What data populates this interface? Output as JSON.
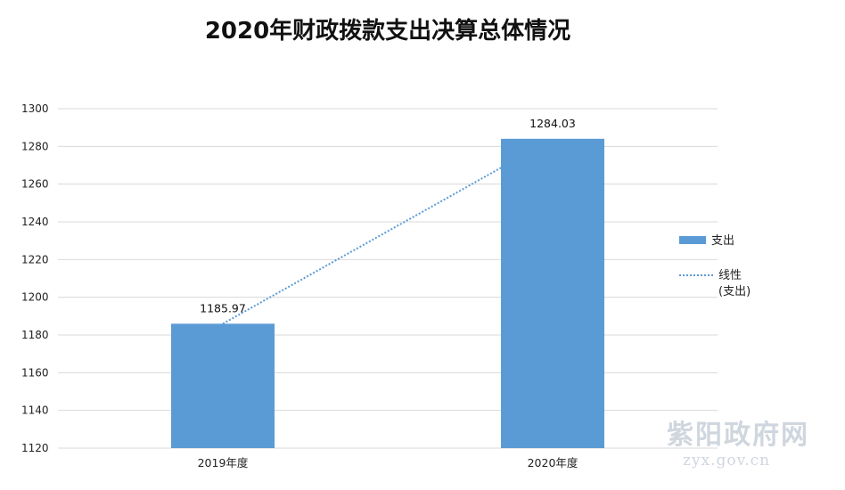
{
  "chart_data": {
    "type": "bar",
    "title": "2020年财政拨款支出决算总体情况",
    "categories": [
      "2019年度",
      "2020年度"
    ],
    "series": [
      {
        "name": "支出",
        "values": [
          1185.97,
          1284.03
        ],
        "color": "#5b9bd5"
      }
    ],
    "trendline": {
      "name_line1": "线性",
      "name_line2": "(支出)",
      "color": "#5b9bd5",
      "style": "dotted"
    },
    "data_labels": [
      "1185.97",
      "1284.03"
    ],
    "ylim": [
      1120,
      1300
    ],
    "yticks": [
      1120,
      1140,
      1160,
      1180,
      1200,
      1220,
      1240,
      1260,
      1280,
      1300
    ],
    "grid": true,
    "legend_position": "right"
  },
  "watermark": {
    "text": "紫阳政府网",
    "url": "zyx.gov.cn"
  }
}
